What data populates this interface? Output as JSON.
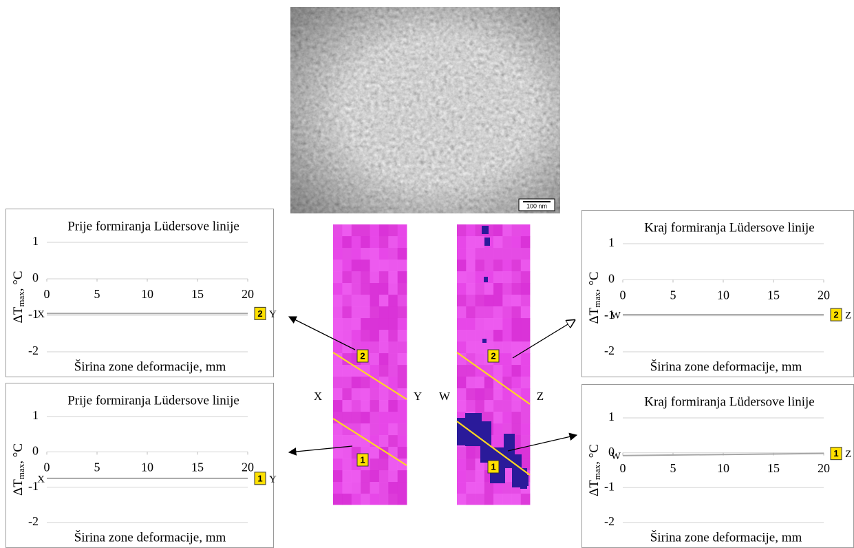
{
  "chart_data": [
    {
      "type": "line",
      "title": "Prije formiranja Lüdersove linije",
      "xlabel": "Širina zone deformacije, mm",
      "ylabel": {
        "main": "ΔT",
        "sub": "max",
        "unit": ", °C"
      },
      "x": [
        0,
        20
      ],
      "values": [
        -0.95,
        -0.95
      ],
      "color": "#a6a6a6",
      "xlim": [
        0,
        20
      ],
      "xticks": [
        0,
        5,
        10,
        15,
        20
      ],
      "ylim": [
        -2,
        1
      ],
      "yticks": [
        -2,
        -1,
        0,
        1
      ],
      "grid": true,
      "start_label": "X",
      "marker": "2",
      "end_label": "Y"
    },
    {
      "type": "line",
      "title": "Prije formiranja Lüdersove linije",
      "xlabel": "Širina zone deformacije, mm",
      "ylabel": {
        "main": "ΔT",
        "sub": "max",
        "unit": ", °C"
      },
      "x": [
        0,
        20
      ],
      "values": [
        -0.75,
        -0.75
      ],
      "color": "#a6a6a6",
      "xlim": [
        0,
        20
      ],
      "xticks": [
        0,
        5,
        10,
        15,
        20
      ],
      "ylim": [
        -2,
        1
      ],
      "yticks": [
        -2,
        -1,
        0,
        1
      ],
      "grid": true,
      "start_label": "X",
      "marker": "1",
      "end_label": "Y"
    },
    {
      "type": "line",
      "title": "Kraj formiranja Lüdersove linije",
      "xlabel": "Širina zone deformacije, mm",
      "ylabel": {
        "main": "ΔT",
        "sub": "max",
        "unit": ", °C"
      },
      "x": [
        0,
        20
      ],
      "values": [
        -0.97,
        -0.97
      ],
      "color": "#a6a6a6",
      "xlim": [
        0,
        20
      ],
      "xticks": [
        0,
        5,
        10,
        15,
        20
      ],
      "ylim": [
        -2,
        1
      ],
      "yticks": [
        -2,
        -1,
        0,
        1
      ],
      "grid": true,
      "start_label": "W",
      "marker": "2",
      "end_label": "Z"
    },
    {
      "type": "line",
      "title": "Kraj formiranja Lüdersove linije",
      "xlabel": "Širina zone deformacije, mm",
      "ylabel": {
        "main": "ΔT",
        "sub": "max",
        "unit": ", °C"
      },
      "x": [
        0,
        20
      ],
      "values": [
        -0.08,
        -0.02
      ],
      "color": "#a6a6a6",
      "xlim": [
        0,
        20
      ],
      "xticks": [
        0,
        5,
        10,
        15,
        20
      ],
      "ylim": [
        -2,
        1
      ],
      "yticks": [
        -2,
        -1,
        0,
        1
      ],
      "grid": true,
      "start_label": "W",
      "marker": "1",
      "end_label": "Z"
    }
  ],
  "micrograph": {
    "scale_bar": "100 nm"
  },
  "thermal_maps": [
    {
      "left_label": "X",
      "right_label": "Y",
      "markers": [
        "2",
        "1"
      ]
    },
    {
      "left_label": "W",
      "right_label": "Z",
      "markers": [
        "2",
        "1"
      ]
    }
  ]
}
